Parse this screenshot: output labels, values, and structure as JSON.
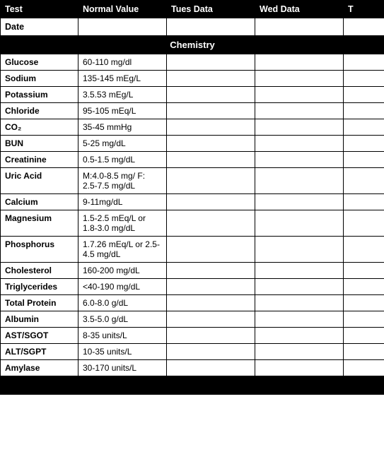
{
  "columns": {
    "test": "Test",
    "normal_value": "Normal Value",
    "tues": "Tues  Data",
    "wed": "Wed  Data",
    "th": "T"
  },
  "date_row_label": "Date",
  "section1": {
    "title": "Chemistry",
    "rows": [
      {
        "test": "Glucose",
        "nv": "60-110 mg/dl"
      },
      {
        "test": "Sodium",
        "nv": "135-145 mEg/L"
      },
      {
        "test": "Potassium",
        "nv": "3.5.53 mEg/L"
      },
      {
        "test": "Chloride",
        "nv": "95-105 mEq/L"
      },
      {
        "test": "CO₂",
        "nv": "35-45 mmHg"
      },
      {
        "test": "BUN",
        "nv": "5-25 mg/dL"
      },
      {
        "test": "Creatinine",
        "nv": "0.5-1.5 mg/dL"
      },
      {
        "test": "Uric Acid",
        "nv": "M:4.0-8.5 mg/\nF: 2.5-7.5 mg/dL"
      },
      {
        "test": "Calcium",
        "nv": "9-11mg/dL"
      },
      {
        "test": "Magnesium",
        "nv": "1.5-2.5 mEq/L or 1.8-3.0 mg/dL"
      },
      {
        "test": "Phosphorus",
        "nv": "1.7.26 mEq/L or 2.5-4.5 mg/dL"
      },
      {
        "test": "Cholesterol",
        "nv": "160-200 mg/dL"
      },
      {
        "test": "Triglycerides",
        "nv": "<40-190 mg/dL"
      },
      {
        "test": "Total Protein",
        "nv": "6.0-8.0 g/dL"
      },
      {
        "test": "Albumin",
        "nv": "3.5-5.0 g/dL"
      },
      {
        "test": "AST/SGOT",
        "nv": "8-35 units/L"
      },
      {
        "test": "ALT/SGPT",
        "nv": "10-35 units/L"
      },
      {
        "test": "Amylase",
        "nv": "30-170 units/L"
      }
    ]
  },
  "section2": {
    "title": ""
  },
  "colors": {
    "background": "#ffffff",
    "header_bg": "#000000",
    "header_fg": "#ffffff",
    "border": "#000000",
    "text": "#000000"
  }
}
